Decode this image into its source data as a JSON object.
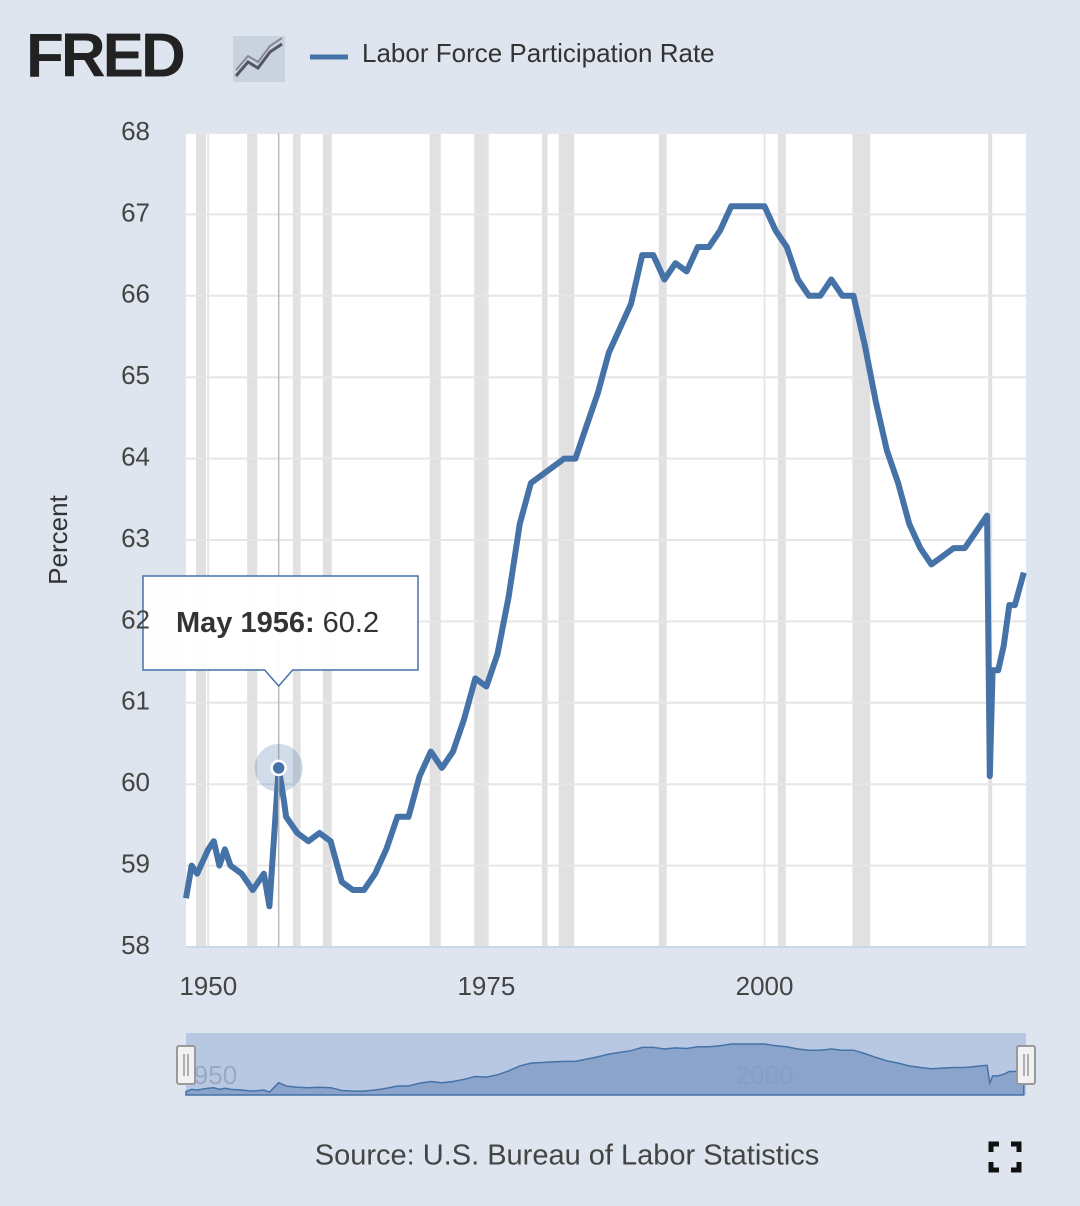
{
  "chart_data": {
    "type": "line",
    "logo": "FRED",
    "y_label": "Percent",
    "source": "Source: U.S. Bureau of Labor Statistics",
    "xlim": [
      1948,
      2023.5
    ],
    "xticks": [
      1950,
      1975,
      2000
    ],
    "ylim": [
      58,
      68
    ],
    "yticks": [
      58,
      59,
      60,
      61,
      62,
      63,
      64,
      65,
      66,
      67,
      68
    ],
    "grid": true,
    "recessions": [
      [
        1948.9,
        1949.8
      ],
      [
        1953.5,
        1954.4
      ],
      [
        1957.6,
        1958.3
      ],
      [
        1960.3,
        1961.1
      ],
      [
        1969.9,
        1970.9
      ],
      [
        1973.9,
        1975.2
      ],
      [
        1980.0,
        1980.5
      ],
      [
        1981.5,
        1982.9
      ],
      [
        1990.5,
        1991.2
      ],
      [
        2001.2,
        2001.9
      ],
      [
        2007.9,
        2009.5
      ],
      [
        2020.1,
        2020.3
      ]
    ],
    "series": [
      {
        "name": "Labor Force Participation Rate",
        "color": "#4572a7",
        "x": [
          1948.0,
          1948.5,
          1949.0,
          1950.0,
          1950.5,
          1951.0,
          1951.5,
          1952.0,
          1953.0,
          1954.0,
          1955.0,
          1955.5,
          1956.33,
          1956.8,
          1957.0,
          1958.0,
          1959.0,
          1960.0,
          1961.0,
          1962.0,
          1963.0,
          1964.0,
          1965.0,
          1966.0,
          1967.0,
          1968.0,
          1969.0,
          1970.0,
          1971.0,
          1972.0,
          1973.0,
          1974.0,
          1975.0,
          1976.0,
          1977.0,
          1978.0,
          1979.0,
          1980.0,
          1981.0,
          1982.0,
          1983.0,
          1984.0,
          1985.0,
          1986.0,
          1987.0,
          1988.0,
          1989.0,
          1990.0,
          1991.0,
          1992.0,
          1993.0,
          1994.0,
          1995.0,
          1996.0,
          1997.0,
          1998.0,
          1999.0,
          2000.0,
          2001.0,
          2002.0,
          2003.0,
          2004.0,
          2005.0,
          2006.0,
          2007.0,
          2008.0,
          2009.0,
          2010.0,
          2011.0,
          2012.0,
          2013.0,
          2014.0,
          2015.0,
          2016.0,
          2017.0,
          2018.0,
          2019.0,
          2020.0,
          2020.25,
          2020.5,
          2021.0,
          2021.5,
          2022.0,
          2022.5,
          2023.3
        ],
        "values": [
          58.6,
          59.0,
          58.9,
          59.2,
          59.3,
          59.0,
          59.2,
          59.0,
          58.9,
          58.7,
          58.9,
          58.5,
          60.2,
          59.8,
          59.6,
          59.4,
          59.3,
          59.4,
          59.3,
          58.8,
          58.7,
          58.7,
          58.9,
          59.2,
          59.6,
          59.6,
          60.1,
          60.4,
          60.2,
          60.4,
          60.8,
          61.3,
          61.2,
          61.6,
          62.3,
          63.2,
          63.7,
          63.8,
          63.9,
          64.0,
          64.0,
          64.4,
          64.8,
          65.3,
          65.6,
          65.9,
          66.5,
          66.5,
          66.2,
          66.4,
          66.3,
          66.6,
          66.6,
          66.8,
          67.1,
          67.1,
          67.1,
          67.1,
          66.8,
          66.6,
          66.2,
          66.0,
          66.0,
          66.2,
          66.0,
          66.0,
          65.4,
          64.7,
          64.1,
          63.7,
          63.2,
          62.9,
          62.7,
          62.8,
          62.9,
          62.9,
          63.1,
          63.3,
          60.1,
          61.4,
          61.4,
          61.7,
          62.2,
          62.2,
          62.6
        ]
      }
    ],
    "tooltip": {
      "label": "May 1956:",
      "x": 1956.33,
      "value": 60.2
    },
    "navigator": {
      "xticks": [
        1950,
        2000
      ]
    }
  }
}
